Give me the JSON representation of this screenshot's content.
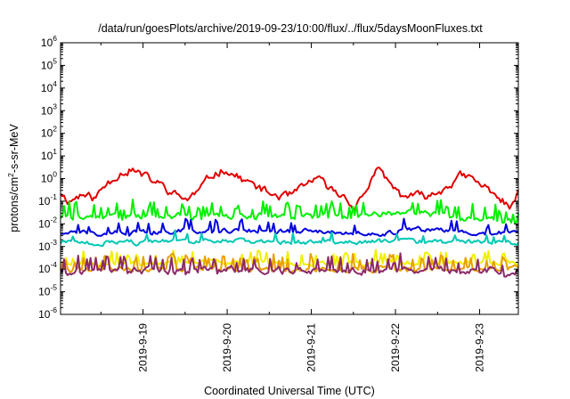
{
  "chart_data": {
    "type": "line",
    "title": "/data/run/goesPlots/archive/2019-09-23/10:00/flux/../flux/5daysMoonFluxes.txt",
    "xlabel": "Coordinated Universal Time (UTC)",
    "ylabel_base": "protons/cm",
    "ylabel_sup": "2",
    "ylabel_rest": "-s-sr-MeV",
    "y_scale": "log",
    "ylim": [
      1e-06,
      1000000.0
    ],
    "y_ticks": [
      {
        "base": "10",
        "exp": "6"
      },
      {
        "base": "10",
        "exp": "5"
      },
      {
        "base": "10",
        "exp": "4"
      },
      {
        "base": "10",
        "exp": "3"
      },
      {
        "base": "10",
        "exp": "2"
      },
      {
        "base": "10",
        "exp": "1"
      },
      {
        "base": "10",
        "exp": "0"
      },
      {
        "base": "10",
        "exp": "-1"
      },
      {
        "base": "10",
        "exp": "-2"
      },
      {
        "base": "10",
        "exp": "-3"
      },
      {
        "base": "10",
        "exp": "-4"
      },
      {
        "base": "10",
        "exp": "-5"
      },
      {
        "base": "10",
        "exp": "-6"
      }
    ],
    "xlim": [
      0,
      5.44
    ],
    "x_ticks": [
      {
        "label": "2019-9-19",
        "x": 0.98
      },
      {
        "label": "2019-9-20",
        "x": 1.98
      },
      {
        "label": "2019-9-21",
        "x": 2.98
      },
      {
        "label": "2019-9-22",
        "x": 3.98
      },
      {
        "label": "2019-9-23",
        "x": 4.98
      }
    ],
    "grid": false,
    "legend": "none",
    "series": [
      {
        "color": "#e00000",
        "anchors": [
          [
            0.0,
            0.25
          ],
          [
            0.1,
            0.1
          ],
          [
            0.25,
            0.2
          ],
          [
            0.4,
            0.13
          ],
          [
            0.55,
            0.6
          ],
          [
            0.7,
            1.8
          ],
          [
            0.85,
            2.5
          ],
          [
            1.0,
            1.2
          ],
          [
            1.2,
            0.5
          ],
          [
            1.35,
            0.2
          ],
          [
            1.5,
            0.12
          ],
          [
            1.65,
            0.3
          ],
          [
            1.8,
            1.5
          ],
          [
            1.95,
            2.6
          ],
          [
            2.1,
            1.2
          ],
          [
            2.3,
            0.5
          ],
          [
            2.5,
            0.2
          ],
          [
            2.7,
            0.15
          ],
          [
            2.9,
            0.4
          ],
          [
            3.0,
            1.0
          ],
          [
            3.1,
            0.7
          ],
          [
            3.25,
            0.25
          ],
          [
            3.4,
            0.15
          ],
          [
            3.5,
            0.05
          ],
          [
            3.6,
            0.2
          ],
          [
            3.75,
            2.2
          ],
          [
            3.85,
            1.2
          ],
          [
            3.95,
            0.4
          ],
          [
            4.05,
            0.18
          ],
          [
            4.3,
            0.16
          ],
          [
            4.45,
            0.2
          ],
          [
            4.6,
            0.5
          ],
          [
            4.75,
            1.2
          ],
          [
            4.85,
            1.1
          ],
          [
            5.0,
            0.5
          ],
          [
            5.15,
            0.25
          ],
          [
            5.35,
            0.05
          ],
          [
            5.44,
            0.2
          ]
        ],
        "noise": 0.35,
        "seed": 11,
        "spike_prob": 0.0,
        "spike_amp": 0
      },
      {
        "color": "#00f000",
        "anchors": [
          [
            0.0,
            0.02
          ],
          [
            1.0,
            0.02
          ],
          [
            2.0,
            0.025
          ],
          [
            3.0,
            0.02
          ],
          [
            4.0,
            0.03
          ],
          [
            4.3,
            0.03
          ],
          [
            5.0,
            0.015
          ],
          [
            5.44,
            0.012
          ]
        ],
        "noise": 0.25,
        "seed": 22,
        "spike_prob": 0.2,
        "spike_amp": 4
      },
      {
        "color": "#0000e0",
        "anchors": [
          [
            0.0,
            0.004
          ],
          [
            0.8,
            0.004
          ],
          [
            1.5,
            0.005
          ],
          [
            2.5,
            0.005
          ],
          [
            3.5,
            0.004
          ],
          [
            3.8,
            0.003
          ],
          [
            4.1,
            0.006
          ],
          [
            5.0,
            0.004
          ],
          [
            5.44,
            0.004
          ]
        ],
        "noise": 0.2,
        "seed": 33,
        "spike_prob": 0.12,
        "spike_amp": 3
      },
      {
        "color": "#00c8b4",
        "anchors": [
          [
            0.0,
            0.0015
          ],
          [
            1.0,
            0.0015
          ],
          [
            2.0,
            0.0017
          ],
          [
            3.0,
            0.0016
          ],
          [
            4.0,
            0.0017
          ],
          [
            5.0,
            0.0015
          ],
          [
            5.44,
            0.0014
          ]
        ],
        "noise": 0.2,
        "seed": 44,
        "spike_prob": 0.08,
        "spike_amp": 2.5
      },
      {
        "color": "#f0f000",
        "anchors": [
          [
            0.0,
            0.00018
          ],
          [
            1.0,
            0.00018
          ],
          [
            2.0,
            0.0002
          ],
          [
            3.0,
            0.00018
          ],
          [
            4.0,
            0.0002
          ],
          [
            5.0,
            0.0002
          ],
          [
            5.44,
            0.00018
          ]
        ],
        "noise": 0.2,
        "seed": 55,
        "spike_prob": 0.18,
        "spike_amp": 3
      },
      {
        "color": "#e8a000",
        "anchors": [
          [
            0.0,
            0.0001
          ],
          [
            1.0,
            0.0001
          ],
          [
            2.0,
            0.0001
          ],
          [
            3.0,
            0.0001
          ],
          [
            4.0,
            0.0001
          ],
          [
            5.0,
            0.0001
          ],
          [
            5.44,
            0.0001
          ]
        ],
        "noise": 0.25,
        "seed": 66,
        "spike_prob": 0.2,
        "spike_amp": 4
      },
      {
        "color": "#8b2a6a",
        "anchors": [
          [
            0.0,
            8e-05
          ],
          [
            1.0,
            8e-05
          ],
          [
            2.0,
            9e-05
          ],
          [
            3.0,
            8e-05
          ],
          [
            4.0,
            9e-05
          ],
          [
            5.0,
            8e-05
          ],
          [
            5.44,
            8e-05
          ]
        ],
        "noise": 0.3,
        "seed": 77,
        "spike_prob": 0.2,
        "spike_amp": 4
      }
    ]
  }
}
